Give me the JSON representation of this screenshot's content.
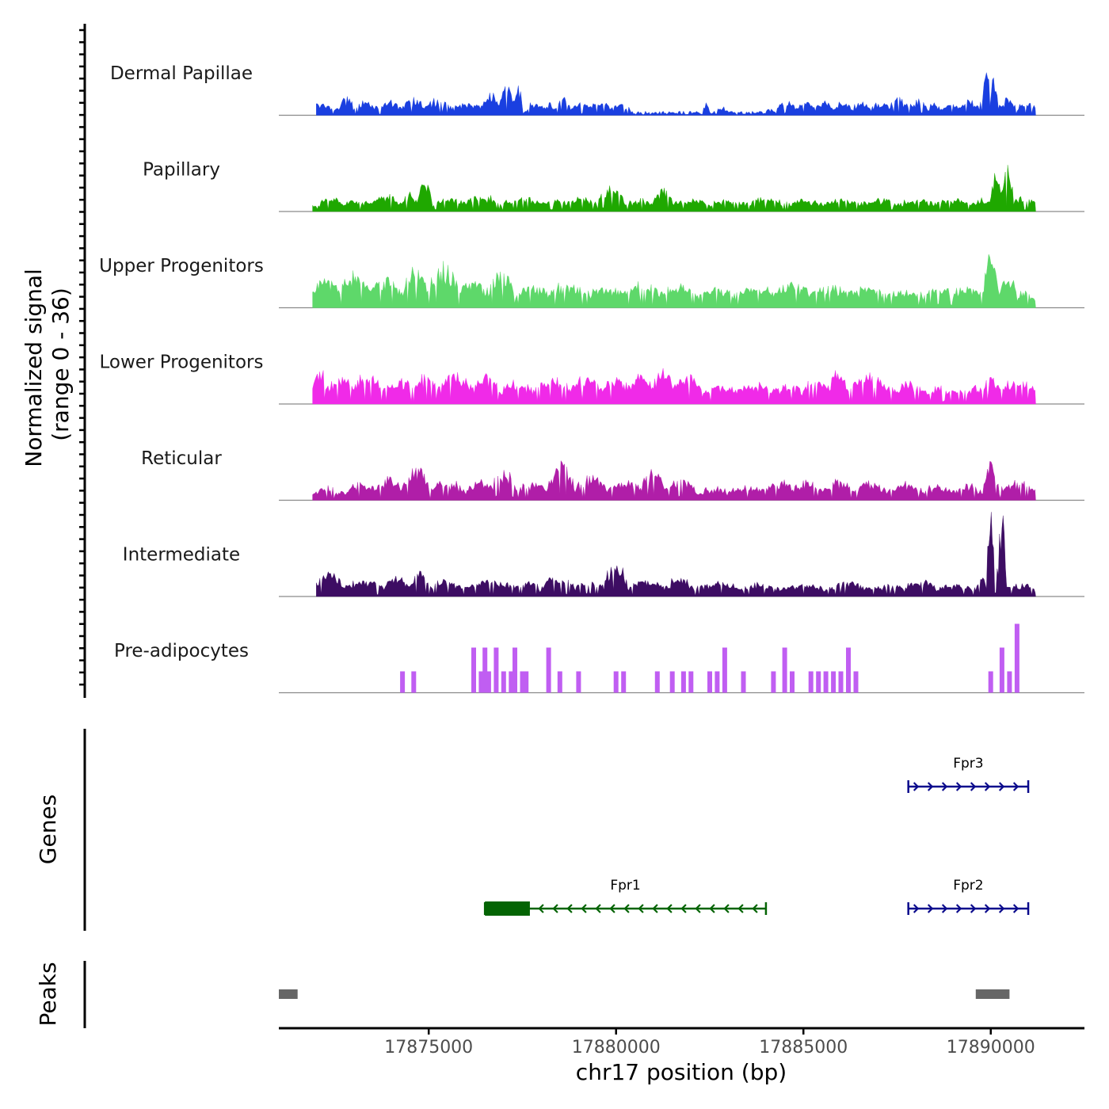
{
  "chart_data": {
    "type": "area",
    "title": "",
    "signal_axis_title": [
      "Normalized signal",
      "(range 0 - 36)"
    ],
    "genes_axis_title": "Genes",
    "peaks_axis_title": "Peaks",
    "xlabel": "chr17 position (bp)",
    "xlim": [
      17871000,
      17892500
    ],
    "x_ticks": [
      17875000,
      17880000,
      17885000,
      17890000
    ],
    "x_tick_labels": [
      "17875000",
      "17880000",
      "17885000",
      "17890000"
    ],
    "ylim": [
      0,
      36
    ],
    "tracks": [
      {
        "name": "Dermal Papillae",
        "color": "#1a3fe0",
        "peaks": [
          [
            17871200,
            17871600,
            5
          ],
          [
            17871600,
            17872600,
            4
          ],
          [
            17872600,
            17873000,
            7
          ],
          [
            17873000,
            17873600,
            6
          ],
          [
            17873600,
            17874300,
            5
          ],
          [
            17874300,
            17874900,
            7
          ],
          [
            17874900,
            17875600,
            6
          ],
          [
            17875600,
            17876400,
            5
          ],
          [
            17876400,
            17876900,
            9
          ],
          [
            17876900,
            17877300,
            12
          ],
          [
            17877300,
            17877500,
            13
          ],
          [
            17877600,
            17878100,
            5
          ],
          [
            17878100,
            17878400,
            4
          ],
          [
            17878400,
            17878800,
            9
          ],
          [
            17878800,
            17879300,
            5
          ],
          [
            17879300,
            17879900,
            5
          ],
          [
            17879900,
            17880400,
            4
          ],
          [
            17882300,
            17882500,
            4
          ],
          [
            17882700,
            17883000,
            2
          ],
          [
            17884000,
            17884200,
            2
          ],
          [
            17884300,
            17884800,
            6
          ],
          [
            17884800,
            17885300,
            5
          ],
          [
            17885300,
            17885800,
            5
          ],
          [
            17885800,
            17886300,
            5
          ],
          [
            17886300,
            17886800,
            5
          ],
          [
            17886800,
            17887300,
            5
          ],
          [
            17887300,
            17887800,
            7
          ],
          [
            17887800,
            17888300,
            6
          ],
          [
            17888300,
            17888700,
            4
          ],
          [
            17888700,
            17889200,
            5
          ],
          [
            17889200,
            17889700,
            6
          ],
          [
            17889700,
            17890200,
            18
          ],
          [
            17890200,
            17890700,
            6
          ],
          [
            17890700,
            17891200,
            5
          ]
        ],
        "base": 0.3,
        "noise": 1.5,
        "start": 17872000,
        "end": 17891200
      },
      {
        "name": "Papillary",
        "color": "#1fa800",
        "peaks": [
          [
            17872100,
            17872700,
            4
          ],
          [
            17872700,
            17873500,
            3
          ],
          [
            17873500,
            17874300,
            5
          ],
          [
            17874300,
            17874700,
            6
          ],
          [
            17874700,
            17875100,
            11
          ],
          [
            17875100,
            17876000,
            4
          ],
          [
            17876000,
            17877000,
            5
          ],
          [
            17877000,
            17878000,
            4
          ],
          [
            17878000,
            17878700,
            3
          ],
          [
            17878700,
            17879500,
            4
          ],
          [
            17879500,
            17880200,
            10
          ],
          [
            17880200,
            17881000,
            3
          ],
          [
            17881000,
            17881500,
            9
          ],
          [
            17881500,
            17882500,
            3
          ],
          [
            17882500,
            17883500,
            3
          ],
          [
            17883500,
            17884500,
            4
          ],
          [
            17884500,
            17885500,
            3
          ],
          [
            17885500,
            17886500,
            3
          ],
          [
            17886500,
            17887500,
            3
          ],
          [
            17887500,
            17888500,
            3
          ],
          [
            17888500,
            17889500,
            3
          ],
          [
            17889500,
            17890000,
            3
          ],
          [
            17890000,
            17890300,
            17
          ],
          [
            17890300,
            17890600,
            19
          ],
          [
            17890600,
            17891200,
            4
          ]
        ],
        "base": 1.0,
        "noise": 2.0,
        "start": 17871900,
        "end": 17891200
      },
      {
        "name": "Upper Progenitors",
        "color": "#5ed86a",
        "peaks": [
          [
            17871900,
            17872600,
            10
          ],
          [
            17872600,
            17873400,
            12
          ],
          [
            17873400,
            17874300,
            9
          ],
          [
            17874300,
            17875000,
            13
          ],
          [
            17875000,
            17875800,
            16
          ],
          [
            17875800,
            17876600,
            8
          ],
          [
            17876600,
            17877300,
            13
          ],
          [
            17877300,
            17878200,
            6
          ],
          [
            17878200,
            17879200,
            7
          ],
          [
            17879200,
            17880200,
            6
          ],
          [
            17880200,
            17881200,
            7
          ],
          [
            17881200,
            17882200,
            6
          ],
          [
            17882200,
            17883200,
            5
          ],
          [
            17883200,
            17884200,
            6
          ],
          [
            17884200,
            17885200,
            7
          ],
          [
            17885200,
            17886200,
            6
          ],
          [
            17886200,
            17887200,
            5
          ],
          [
            17887200,
            17888200,
            4
          ],
          [
            17888200,
            17889000,
            5
          ],
          [
            17889000,
            17889800,
            6
          ],
          [
            17889800,
            17890200,
            19
          ],
          [
            17890200,
            17890700,
            10
          ],
          [
            17890700,
            17891200,
            3
          ]
        ],
        "base": 2.0,
        "noise": 3.0,
        "start": 17871900,
        "end": 17891200
      },
      {
        "name": "Lower Progenitors",
        "color": "#f02ae8",
        "peaks": [
          [
            17871900,
            17872300,
            11
          ],
          [
            17872300,
            17873000,
            9
          ],
          [
            17873000,
            17873800,
            10
          ],
          [
            17873800,
            17874600,
            8
          ],
          [
            17874600,
            17875300,
            9
          ],
          [
            17875300,
            17876200,
            10
          ],
          [
            17876200,
            17876900,
            9
          ],
          [
            17876900,
            17877800,
            6
          ],
          [
            17877800,
            17878800,
            7
          ],
          [
            17878800,
            17879600,
            8
          ],
          [
            17879600,
            17880400,
            8
          ],
          [
            17880400,
            17881000,
            10
          ],
          [
            17881000,
            17881500,
            13
          ],
          [
            17881500,
            17882300,
            10
          ],
          [
            17882300,
            17883300,
            4
          ],
          [
            17883300,
            17884300,
            5
          ],
          [
            17884300,
            17885000,
            5
          ],
          [
            17885000,
            17885700,
            8
          ],
          [
            17885700,
            17886200,
            12
          ],
          [
            17886200,
            17887300,
            9
          ],
          [
            17887300,
            17888300,
            5
          ],
          [
            17888300,
            17889300,
            4
          ],
          [
            17889300,
            17889800,
            4
          ],
          [
            17889800,
            17890300,
            8
          ],
          [
            17890300,
            17891200,
            7
          ]
        ],
        "base": 2.0,
        "noise": 3.0,
        "start": 17871900,
        "end": 17891200
      },
      {
        "name": "Reticular",
        "color": "#b01ea8",
        "peaks": [
          [
            17871900,
            17872700,
            3
          ],
          [
            17872700,
            17873600,
            5
          ],
          [
            17873600,
            17874300,
            8
          ],
          [
            17874300,
            17875000,
            13
          ],
          [
            17875000,
            17876000,
            6
          ],
          [
            17876000,
            17876700,
            7
          ],
          [
            17876700,
            17877300,
            11
          ],
          [
            17877300,
            17878200,
            6
          ],
          [
            17878200,
            17878900,
            14
          ],
          [
            17878900,
            17879800,
            8
          ],
          [
            17879800,
            17880700,
            7
          ],
          [
            17880700,
            17881300,
            12
          ],
          [
            17881300,
            17882100,
            8
          ],
          [
            17882100,
            17883000,
            3
          ],
          [
            17883000,
            17884000,
            3
          ],
          [
            17884000,
            17884700,
            7
          ],
          [
            17884700,
            17885600,
            6
          ],
          [
            17885600,
            17886300,
            7
          ],
          [
            17886300,
            17887200,
            6
          ],
          [
            17887200,
            17888200,
            5
          ],
          [
            17888200,
            17889000,
            4
          ],
          [
            17889000,
            17889800,
            4
          ],
          [
            17889800,
            17890200,
            16
          ],
          [
            17890200,
            17891200,
            6
          ]
        ],
        "base": 1.0,
        "noise": 2.5,
        "start": 17871900,
        "end": 17891200
      },
      {
        "name": "Intermediate",
        "color": "#3d0d63",
        "peaks": [
          [
            17872000,
            17872700,
            9
          ],
          [
            17872700,
            17873800,
            5
          ],
          [
            17873800,
            17874500,
            7
          ],
          [
            17874500,
            17875000,
            9
          ],
          [
            17875000,
            17876000,
            5
          ],
          [
            17876000,
            17877300,
            5
          ],
          [
            17877300,
            17878000,
            4
          ],
          [
            17878000,
            17878900,
            7
          ],
          [
            17878900,
            17879700,
            6
          ],
          [
            17879700,
            17880300,
            14
          ],
          [
            17880300,
            17881300,
            5
          ],
          [
            17881300,
            17882100,
            6
          ],
          [
            17882100,
            17883300,
            4
          ],
          [
            17883300,
            17884200,
            4
          ],
          [
            17884200,
            17885600,
            3
          ],
          [
            17885600,
            17886800,
            4
          ],
          [
            17886800,
            17887700,
            3
          ],
          [
            17887700,
            17888500,
            5
          ],
          [
            17888500,
            17889600,
            3
          ],
          [
            17889600,
            17889900,
            6
          ],
          [
            17889900,
            17890100,
            35
          ],
          [
            17890100,
            17890200,
            10
          ],
          [
            17890200,
            17890400,
            35
          ],
          [
            17890400,
            17891200,
            3
          ]
        ],
        "base": 1.0,
        "noise": 2.0,
        "start": 17872000,
        "end": 17891200
      },
      {
        "name": "Pre-adipocytes",
        "color": "#c05ef2",
        "bars": [
          [
            17874300,
            9
          ],
          [
            17874600,
            9
          ],
          [
            17876200,
            19
          ],
          [
            17876400,
            9
          ],
          [
            17876500,
            19
          ],
          [
            17876600,
            9
          ],
          [
            17876800,
            19
          ],
          [
            17877000,
            9
          ],
          [
            17877200,
            9
          ],
          [
            17877300,
            19
          ],
          [
            17877500,
            9
          ],
          [
            17877600,
            9
          ],
          [
            17878200,
            19
          ],
          [
            17878500,
            9
          ],
          [
            17879000,
            9
          ],
          [
            17880000,
            9
          ],
          [
            17880200,
            9
          ],
          [
            17881100,
            9
          ],
          [
            17881500,
            9
          ],
          [
            17881800,
            9
          ],
          [
            17882000,
            9
          ],
          [
            17882500,
            9
          ],
          [
            17882700,
            9
          ],
          [
            17882900,
            19
          ],
          [
            17883400,
            9
          ],
          [
            17884200,
            9
          ],
          [
            17884500,
            19
          ],
          [
            17884700,
            9
          ],
          [
            17885200,
            9
          ],
          [
            17885400,
            9
          ],
          [
            17885600,
            9
          ],
          [
            17885800,
            9
          ],
          [
            17886000,
            9
          ],
          [
            17886200,
            19
          ],
          [
            17886400,
            9
          ],
          [
            17890000,
            9
          ],
          [
            17890300,
            19
          ],
          [
            17890500,
            9
          ],
          [
            17890700,
            29
          ]
        ]
      }
    ],
    "genes": [
      {
        "name": "Fpr3",
        "start": 17887800,
        "end": 17891000,
        "strand": "+",
        "color": "#0a0a8c",
        "row": 1
      },
      {
        "name": "Fpr1",
        "start": 17876500,
        "end": 17884000,
        "strand": "-",
        "color": "#046404",
        "row": 2,
        "thick_start": 17876500,
        "thick_end": 17877700
      },
      {
        "name": "Fpr2",
        "start": 17887800,
        "end": 17891000,
        "strand": "+",
        "color": "#0a0a8c",
        "row": 2
      }
    ],
    "peaks_regions": [
      [
        17871000,
        17871500
      ],
      [
        17889600,
        17890500
      ]
    ],
    "peaks_color": "#666666"
  }
}
